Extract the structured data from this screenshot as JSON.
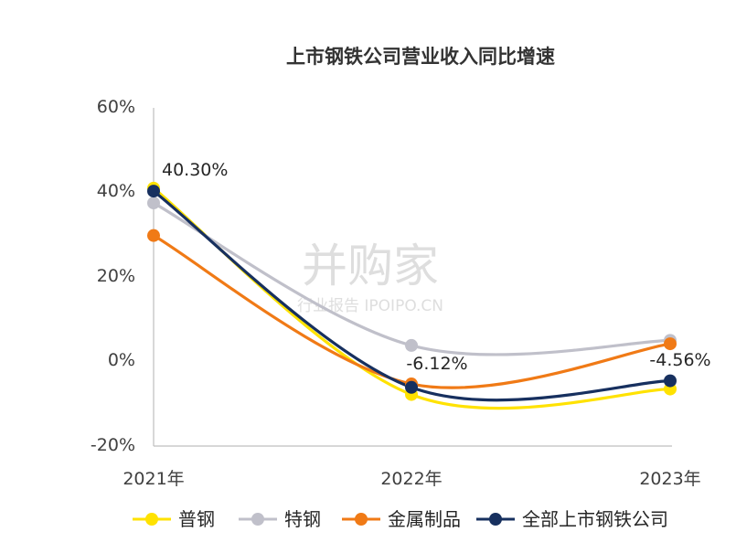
{
  "chart_data": {
    "type": "line",
    "title": "上市钢铁公司营业收入同比增速",
    "x": [
      "2021年",
      "2022年",
      "2023年"
    ],
    "ylim": [
      -20,
      60
    ],
    "yticks": [
      "60%",
      "40%",
      "20%",
      "0%",
      "-20%"
    ],
    "grid": false,
    "legend_position": "bottom",
    "series": [
      {
        "name": "普钢",
        "color": "#FFE200",
        "values": [
          41.0,
          -7.8,
          -6.5
        ]
      },
      {
        "name": "特钢",
        "color": "#C0C0CA",
        "values": [
          37.5,
          3.8,
          5.0
        ]
      },
      {
        "name": "金属制品",
        "color": "#F07A16",
        "values": [
          29.8,
          -5.3,
          4.2
        ]
      },
      {
        "name": "全部上市钢铁公司",
        "color": "#17305F",
        "values": [
          40.3,
          -6.12,
          -4.56
        ]
      }
    ],
    "data_labels": [
      "40.30%",
      "-6.12%",
      "-4.56%"
    ]
  },
  "watermark": {
    "main": "并购家",
    "sub": "行业报告 IPOIPO.CN"
  }
}
